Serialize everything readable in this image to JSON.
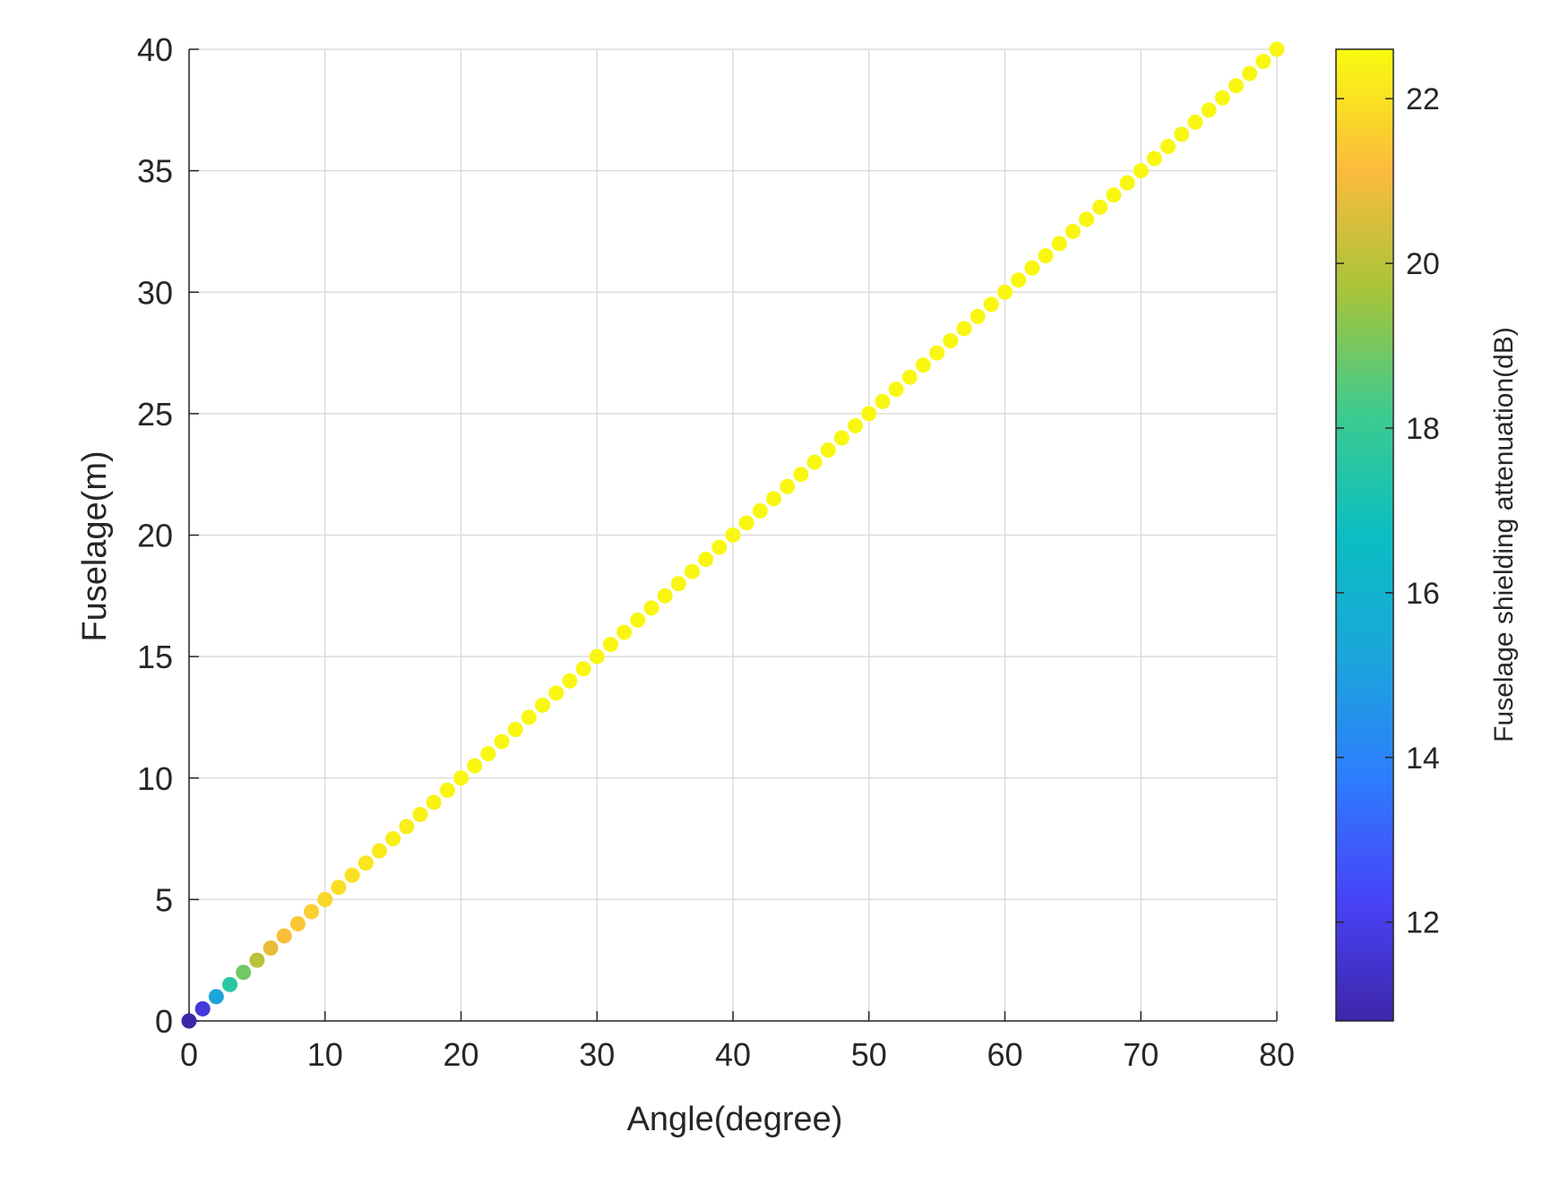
{
  "chart_data": {
    "type": "scatter",
    "xlabel": "Angle(degree)",
    "ylabel": "Fuselage(m)",
    "xlim": [
      0,
      80
    ],
    "ylim": [
      0,
      40
    ],
    "x_ticks": [
      0,
      10,
      20,
      30,
      40,
      50,
      60,
      70,
      80
    ],
    "y_ticks": [
      0,
      5,
      10,
      15,
      20,
      25,
      30,
      35,
      40
    ],
    "grid": true,
    "marker": "filled-circle",
    "series": [
      {
        "x": [
          0,
          1,
          2,
          3,
          4,
          5,
          6,
          7,
          8,
          9,
          10,
          11,
          12,
          13,
          14,
          15,
          16,
          17,
          18,
          19,
          20,
          21,
          22,
          23,
          24,
          25,
          26,
          27,
          28,
          29,
          30,
          31,
          32,
          33,
          34,
          35,
          36,
          37,
          38,
          39,
          40,
          41,
          42,
          43,
          44,
          45,
          46,
          47,
          48,
          49,
          50,
          51,
          52,
          53,
          54,
          55,
          56,
          57,
          58,
          59,
          60,
          61,
          62,
          63,
          64,
          65,
          66,
          67,
          68,
          69,
          70,
          71,
          72,
          73,
          74,
          75,
          76,
          77,
          78,
          79,
          80
        ],
        "y": [
          0,
          0.5,
          1,
          1.5,
          2,
          2.5,
          3,
          3.5,
          4,
          4.5,
          5,
          5.5,
          6,
          6.5,
          7,
          7.5,
          8,
          8.5,
          9,
          9.5,
          10,
          10.5,
          11,
          11.5,
          12,
          12.5,
          13,
          13.5,
          14,
          14.5,
          15,
          15.5,
          16,
          16.5,
          17,
          17.5,
          18,
          18.5,
          19,
          19.5,
          20,
          20.5,
          21,
          21.5,
          22,
          22.5,
          23,
          23.5,
          24,
          24.5,
          25,
          25.5,
          26,
          26.5,
          27,
          27.5,
          28,
          28.5,
          29,
          29.5,
          30,
          30.5,
          31,
          31.5,
          32,
          32.5,
          33,
          33.5,
          34,
          34.5,
          35,
          35.5,
          36,
          36.5,
          37,
          37.5,
          38,
          38.5,
          39,
          39.5,
          40
        ],
        "color_values": [
          10.8,
          11.7,
          15.2,
          17.6,
          18.9,
          20.0,
          20.8,
          21.2,
          21.4,
          21.6,
          21.8,
          21.9,
          22.0,
          22.1,
          22.2,
          22.3,
          22.3,
          22.4,
          22.4,
          22.5,
          22.5,
          22.5,
          22.5,
          22.5,
          22.5,
          22.5,
          22.5,
          22.5,
          22.5,
          22.5,
          22.5,
          22.5,
          22.5,
          22.5,
          22.5,
          22.5,
          22.5,
          22.5,
          22.5,
          22.5,
          22.5,
          22.5,
          22.5,
          22.5,
          22.5,
          22.5,
          22.5,
          22.5,
          22.5,
          22.5,
          22.5,
          22.5,
          22.5,
          22.5,
          22.5,
          22.5,
          22.5,
          22.5,
          22.5,
          22.5,
          22.5,
          22.5,
          22.5,
          22.5,
          22.5,
          22.5,
          22.5,
          22.5,
          22.5,
          22.5,
          22.5,
          22.5,
          22.5,
          22.5,
          22.5,
          22.5,
          22.5,
          22.5,
          22.5,
          22.5,
          22.5
        ]
      }
    ],
    "colorbar": {
      "label": "Fuselage shielding attenuation(dB)",
      "colormap": "parula",
      "range": [
        10.8,
        22.6
      ],
      "ticks": [
        12,
        14,
        16,
        18,
        20,
        22
      ]
    }
  }
}
